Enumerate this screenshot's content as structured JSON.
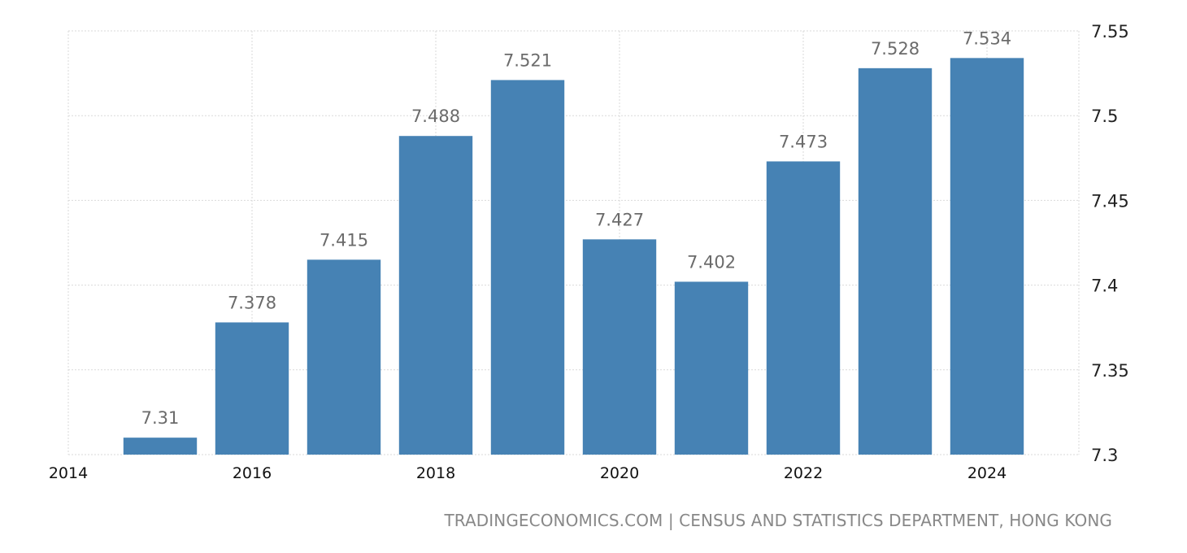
{
  "chart_data": {
    "type": "bar",
    "categories": [
      "2015",
      "2016",
      "2017",
      "2018",
      "2019",
      "2020",
      "2021",
      "2022",
      "2023",
      "2024"
    ],
    "values": [
      7.31,
      7.378,
      7.415,
      7.488,
      7.521,
      7.427,
      7.402,
      7.473,
      7.528,
      7.534
    ],
    "value_labels": [
      "7.31",
      "7.378",
      "7.415",
      "7.488",
      "7.521",
      "7.427",
      "7.402",
      "7.473",
      "7.528",
      "7.534"
    ],
    "x_tick_labels": [
      "2014",
      "2016",
      "2018",
      "2020",
      "2022",
      "2024"
    ],
    "x_range": [
      2014,
      2025
    ],
    "y_tick_labels": [
      "7.3",
      "7.35",
      "7.4",
      "7.45",
      "7.5",
      "7.55"
    ],
    "y_tick_values": [
      7.3,
      7.35,
      7.4,
      7.45,
      7.5,
      7.55
    ],
    "ylim": [
      7.3,
      7.55
    ],
    "y_axis_position": "right",
    "grid": true,
    "bar_color": "#4682b4"
  },
  "source": "TRADINGECONOMICS.COM | CENSUS AND STATISTICS DEPARTMENT, HONG KONG"
}
